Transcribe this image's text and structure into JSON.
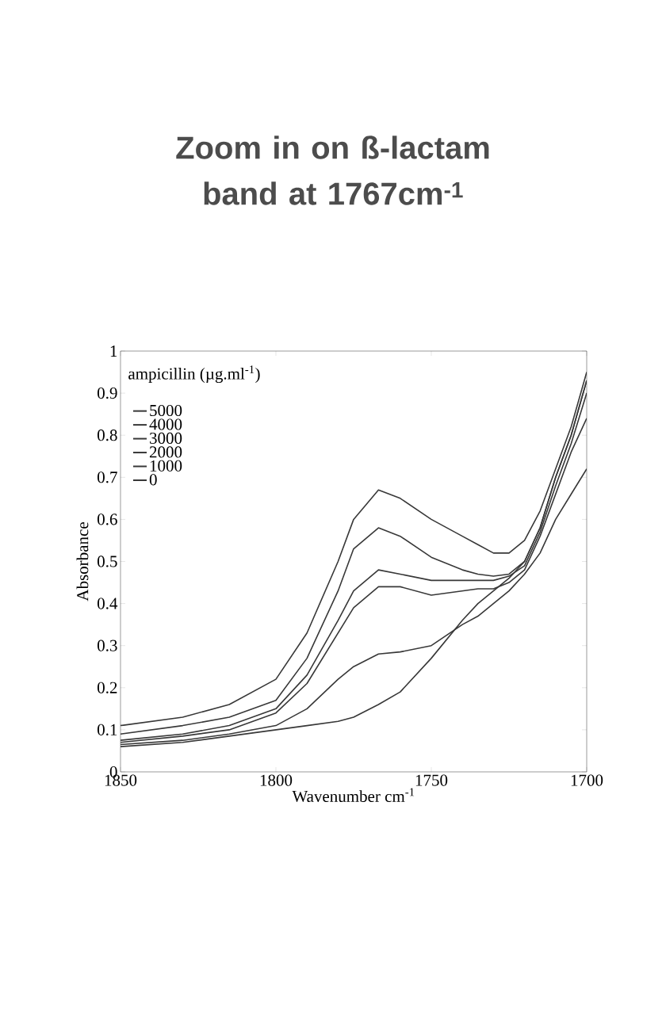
{
  "chart_data": {
    "type": "line",
    "title": "Zoom in on ß-lactam band at 1767cm$^{-1}$",
    "xlabel": "Wavenumber cm$^{-1}$",
    "ylabel": "Absorbance",
    "legend_title": "ampicillin (µg.ml$^{-1}$)",
    "x": [
      1850,
      1830,
      1815,
      1800,
      1790,
      1780,
      1775,
      1767,
      1760,
      1750,
      1740,
      1735,
      1730,
      1725,
      1720,
      1715,
      1710,
      1705,
      1700
    ],
    "series": [
      {
        "name": "5000",
        "color": "#383838",
        "values": [
          0.11,
          0.13,
          0.16,
          0.22,
          0.33,
          0.5,
          0.6,
          0.67,
          0.65,
          0.6,
          0.56,
          0.54,
          0.52,
          0.52,
          0.55,
          0.62,
          0.72,
          0.82,
          0.95
        ]
      },
      {
        "name": "4000",
        "color": "#383838",
        "values": [
          0.09,
          0.11,
          0.13,
          0.17,
          0.27,
          0.43,
          0.53,
          0.58,
          0.56,
          0.51,
          0.48,
          0.47,
          0.465,
          0.47,
          0.5,
          0.58,
          0.7,
          0.8,
          0.93
        ]
      },
      {
        "name": "3000",
        "color": "#383838",
        "values": [
          0.075,
          0.09,
          0.11,
          0.15,
          0.23,
          0.36,
          0.43,
          0.48,
          0.47,
          0.455,
          0.455,
          0.455,
          0.455,
          0.465,
          0.49,
          0.57,
          0.68,
          0.78,
          0.9
        ]
      },
      {
        "name": "2000",
        "color": "#383838",
        "values": [
          0.07,
          0.085,
          0.1,
          0.14,
          0.21,
          0.33,
          0.39,
          0.44,
          0.44,
          0.42,
          0.43,
          0.435,
          0.435,
          0.45,
          0.48,
          0.56,
          0.66,
          0.76,
          0.84
        ]
      },
      {
        "name": "1000",
        "color": "#383838",
        "values": [
          0.065,
          0.075,
          0.09,
          0.11,
          0.15,
          0.22,
          0.25,
          0.28,
          0.285,
          0.3,
          0.35,
          0.37,
          0.4,
          0.43,
          0.47,
          0.52,
          0.6,
          0.66,
          0.72
        ]
      },
      {
        "name": "0",
        "color": "#383838",
        "values": [
          0.06,
          0.07,
          0.085,
          0.1,
          0.11,
          0.12,
          0.13,
          0.16,
          0.19,
          0.27,
          0.36,
          0.4,
          0.43,
          0.46,
          0.5,
          0.58,
          0.7,
          0.8,
          0.93
        ]
      }
    ],
    "xlim": [
      1850,
      1700
    ],
    "ylim": [
      0,
      1
    ],
    "xticks": [
      1850,
      1800,
      1750,
      1700
    ],
    "yticks": [
      0,
      0.1,
      0.2,
      0.3,
      0.4,
      0.5,
      0.6,
      0.7,
      0.8,
      0.9,
      1
    ],
    "legend": "top left",
    "grid": false,
    "marker": "none",
    "line_style": "solid"
  }
}
